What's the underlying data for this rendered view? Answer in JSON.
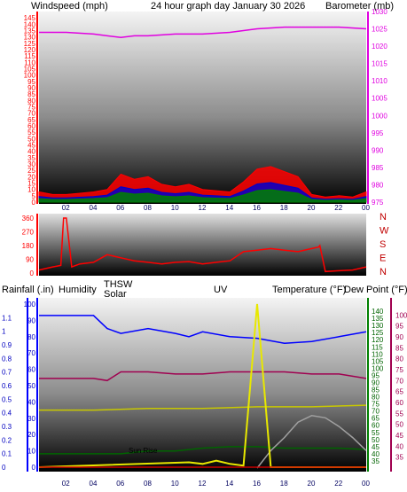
{
  "header": {
    "wind_title": "Windspeed (mph)",
    "graph_title": "24 hour graph day   January 30 2026",
    "baro_title": "Barometer (mb)"
  },
  "colors": {
    "wind": "#ff0000",
    "gust_blue": "#0000cc",
    "gust_green": "#008000",
    "barometer": "#e000e0",
    "direction": "#ff0000",
    "rain": "#c80000",
    "humidity": "#0000ff",
    "thsw": "#a0a0a0",
    "solar": "#c8c800",
    "uv": "#d09000",
    "temperature": "#006400",
    "dewpoint": "#a00050"
  },
  "panels": [
    {
      "id": "wind",
      "left_axis": {
        "min": 0,
        "max": 150,
        "ticks": [
          "0",
          "5",
          "10",
          "15",
          "20",
          "25",
          "30",
          "35",
          "40",
          "45",
          "50",
          "55",
          "60",
          "65",
          "70",
          "75",
          "80",
          "85",
          "90",
          "95",
          "100",
          "105",
          "110",
          "115",
          "120",
          "125",
          "130",
          "135",
          "140",
          "145"
        ]
      },
      "right_axis": {
        "min": 975,
        "max": 1030,
        "ticks": [
          "975",
          "980",
          "985",
          "990",
          "995",
          "1000",
          "1005",
          "1010",
          "1015",
          "1020",
          "1025",
          "1030"
        ]
      }
    },
    {
      "id": "direction",
      "left_axis": {
        "min": 0,
        "max": 360,
        "ticks": [
          "0",
          "90",
          "180",
          "270",
          "360"
        ]
      },
      "compass": [
        "N",
        "W",
        "S",
        "E",
        "N"
      ]
    },
    {
      "id": "weather",
      "left_axis": {
        "min": 0,
        "max": 1.2,
        "ticks": [
          "0",
          "0.1",
          "0.2",
          "0.3",
          "0.4",
          "0.5",
          "0.6",
          "0.7",
          "0.8",
          "0.9",
          "1",
          "1.1"
        ]
      },
      "left_axis2": {
        "min": 0,
        "max": 100,
        "ticks": [
          "0",
          "10",
          "20",
          "30",
          "40",
          "50",
          "60",
          "70",
          "80",
          "90",
          "100"
        ]
      },
      "right_axis": {
        "min": 30,
        "max": 145,
        "ticks": [
          "35",
          "40",
          "45",
          "50",
          "55",
          "60",
          "65",
          "70",
          "75",
          "80",
          "85",
          "90",
          "95",
          "100",
          "105",
          "110",
          "115",
          "120",
          "125",
          "130",
          "135",
          "140"
        ]
      },
      "right_axis2": {
        "min": 30,
        "max": 105,
        "ticks": [
          "35",
          "40",
          "45",
          "50",
          "55",
          "60",
          "65",
          "70",
          "75",
          "80",
          "85",
          "90",
          "95",
          "100"
        ]
      }
    }
  ],
  "x_ticks": [
    "02",
    "04",
    "06",
    "08",
    "10",
    "12",
    "14",
    "16",
    "18",
    "20",
    "22",
    "00"
  ],
  "legend": {
    "rainfall": "Rainfall (.in)",
    "humidity": "Humidity",
    "thsw": "THSW",
    "solar": "Solar",
    "uv": "UV",
    "temperature": "Temperature (°F)",
    "dewpoint": "Dew Point (°F)"
  },
  "annotation": {
    "sunrise": "Sun Rise"
  },
  "chart_data": [
    {
      "type": "line",
      "panel": "wind",
      "x_unit": "hour",
      "series": [
        {
          "name": "Windspeed (mph)",
          "axis": "left",
          "x": [
            0,
            1,
            2,
            3,
            4,
            5,
            6,
            7,
            8,
            9,
            10,
            11,
            12,
            13,
            14,
            15,
            16,
            17,
            18,
            19,
            20,
            21,
            22,
            23,
            24
          ],
          "values": [
            8,
            6,
            6,
            7,
            8,
            10,
            22,
            18,
            20,
            14,
            12,
            14,
            10,
            9,
            8,
            16,
            26,
            28,
            24,
            20,
            6,
            4,
            5,
            4,
            8
          ]
        },
        {
          "name": "Barometer (mb)",
          "axis": "right",
          "x": [
            0,
            2,
            4,
            5,
            6,
            7,
            8,
            10,
            12,
            14,
            16,
            18,
            20,
            22,
            24
          ],
          "values": [
            1024,
            1024,
            1023.5,
            1023,
            1022.5,
            1023,
            1023,
            1023.5,
            1023.5,
            1024,
            1025,
            1025.5,
            1025.5,
            1025.5,
            1025
          ]
        }
      ],
      "ylim_left": [
        0,
        150
      ],
      "ylim_right": [
        975,
        1030
      ]
    },
    {
      "type": "line",
      "panel": "direction",
      "x_unit": "hour",
      "series": [
        {
          "name": "Wind direction",
          "x": [
            0,
            1,
            1.6,
            1.8,
            2,
            2.4,
            3,
            4,
            5,
            6,
            7,
            8,
            9,
            10,
            11,
            12,
            13,
            14,
            15,
            16,
            17,
            18,
            19,
            20,
            20.5,
            20.6,
            21,
            22,
            23,
            24
          ],
          "values": [
            20,
            40,
            50,
            360,
            360,
            40,
            60,
            70,
            120,
            100,
            80,
            70,
            60,
            70,
            75,
            60,
            70,
            80,
            140,
            150,
            160,
            150,
            140,
            160,
            170,
            180,
            10,
            15,
            20,
            40
          ]
        }
      ],
      "ylim": [
        0,
        360
      ]
    },
    {
      "type": "line",
      "panel": "weather",
      "x_unit": "hour",
      "series": [
        {
          "name": "Humidity",
          "axis": "left2",
          "x": [
            0,
            2,
            4,
            5,
            6,
            8,
            10,
            11,
            12,
            14,
            16,
            18,
            20,
            22,
            24
          ],
          "values": [
            93,
            93,
            93,
            85,
            82,
            85,
            82,
            80,
            83,
            80,
            79,
            76,
            77,
            80,
            83
          ]
        },
        {
          "name": "Temperature (°F)",
          "axis": "right",
          "x": [
            0,
            2,
            4,
            6,
            8,
            10,
            12,
            14,
            16,
            18,
            20,
            22,
            24
          ],
          "values": [
            40,
            40,
            40,
            40,
            42,
            42,
            44,
            45,
            45,
            44,
            44,
            44,
            43
          ]
        },
        {
          "name": "Dew Point (°F)",
          "axis": "right2",
          "x": [
            0,
            2,
            4,
            5,
            6,
            8,
            10,
            12,
            14,
            16,
            18,
            20,
            22,
            24
          ],
          "values": [
            71,
            71,
            71,
            70,
            74,
            74,
            73,
            73,
            74,
            74,
            74,
            73,
            73,
            71
          ]
        },
        {
          "name": "THSW",
          "axis": "right2",
          "x": [
            16,
            17,
            18,
            19,
            20,
            21,
            22,
            23,
            24
          ],
          "values": [
            30,
            38,
            44,
            51,
            54,
            53,
            49,
            44,
            38
          ]
        },
        {
          "name": "Solar",
          "axis": "left2",
          "x": [
            0,
            4,
            8,
            12,
            16,
            20,
            24
          ],
          "values": [
            35,
            35,
            36,
            36,
            37,
            37,
            38
          ]
        },
        {
          "name": "UV",
          "axis": "left2",
          "x": [
            0,
            11,
            12,
            13,
            14,
            15,
            16,
            16.5,
            17,
            24
          ],
          "values": [
            0,
            3,
            2,
            4,
            2,
            1,
            100,
            50,
            0,
            0
          ]
        },
        {
          "name": "Rainfall (.in)",
          "axis": "left",
          "x": [
            0,
            24
          ],
          "values": [
            0,
            0
          ]
        }
      ],
      "ylim_left": [
        0,
        1.2
      ],
      "ylim_right": [
        30,
        145
      ]
    }
  ]
}
